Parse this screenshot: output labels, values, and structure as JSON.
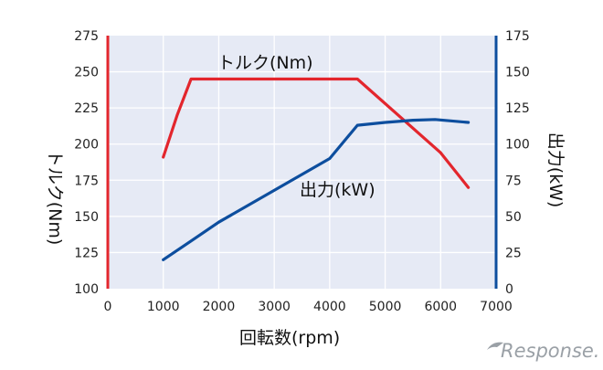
{
  "chart_data": {
    "type": "line",
    "xlabel": "回転数(rpm)",
    "xlim": [
      0,
      7000
    ],
    "x_ticks": [
      "0",
      "1000",
      "2000",
      "3000",
      "4000",
      "5000",
      "6000",
      "7000"
    ],
    "y_left": {
      "label": "トルク(Nm)",
      "ylim": [
        100,
        275
      ],
      "ticks": [
        "100",
        "125",
        "150",
        "175",
        "200",
        "225",
        "250",
        "275"
      ],
      "axis_color": "#e3262d"
    },
    "y_right": {
      "label": "出力(kW)",
      "ylim": [
        0,
        175
      ],
      "ticks": [
        "0",
        "25",
        "50",
        "75",
        "100",
        "125",
        "150",
        "175"
      ],
      "axis_color": "#0d4e9e"
    },
    "series": [
      {
        "name": "トルク(Nm)",
        "axis": "left",
        "color": "#e3262d",
        "x": [
          1000,
          1250,
          1500,
          4500,
          6000,
          6500
        ],
        "y": [
          191,
          220,
          245,
          245,
          194,
          170
        ]
      },
      {
        "name": "出力(kW)",
        "axis": "right",
        "color": "#0d4e9e",
        "x": [
          1000,
          1500,
          2000,
          3000,
          4000,
          4500,
          5000,
          5500,
          5900,
          6500
        ],
        "y": [
          20,
          33,
          46,
          68,
          90,
          113,
          115,
          116.5,
          117,
          115
        ]
      }
    ],
    "grid": true,
    "background": "#e6eaf5",
    "grid_color": "#ffffff"
  },
  "watermark": "Response."
}
